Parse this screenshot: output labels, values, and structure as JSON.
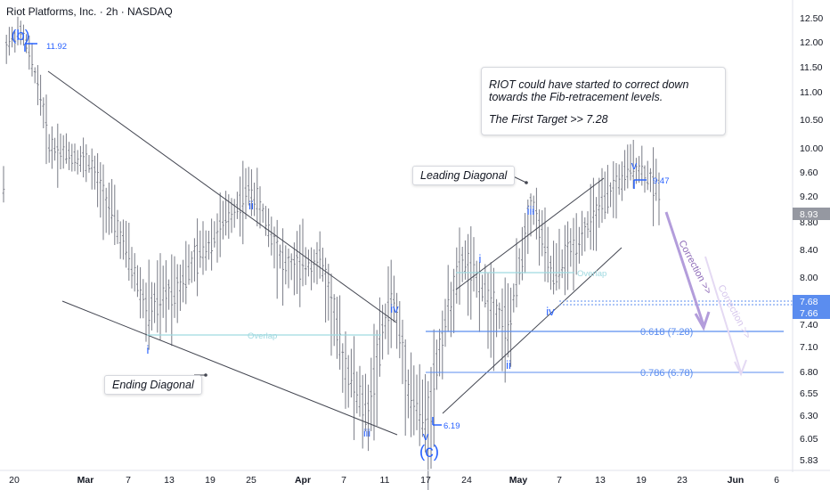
{
  "header": {
    "title": "Riot Platforms, Inc. · 2h · NASDAQ"
  },
  "note": {
    "line1": "RIOT could have started to correct down towards the Fib-retracement levels.",
    "line2": "The First Target >> 7.28"
  },
  "callouts": {
    "leading": "Leading Diagonal",
    "ending": "Ending Diagonal"
  },
  "colors": {
    "wave": "#2962ff",
    "fib": "#5b8def",
    "overlap": "#9fd9e0",
    "trendline": "#434651",
    "candle": "#787b86",
    "arrow": "#b39ddb",
    "price_badge": "#131722"
  },
  "chart_data": {
    "type": "bar",
    "ylim": [
      5.7,
      12.7
    ],
    "y_ticks": [
      "12.50",
      "12.00",
      "11.50",
      "11.00",
      "10.50",
      "10.00",
      "9.60",
      "9.20",
      "8.80",
      "8.40",
      "8.00",
      "7.40",
      "7.10",
      "6.80",
      "6.55",
      "6.30",
      "6.05",
      "5.83"
    ],
    "x_ticks": [
      "20",
      "Mar",
      "7",
      "13",
      "19",
      "25",
      "Apr",
      "7",
      "11",
      "17",
      "24",
      "May",
      "7",
      "13",
      "19",
      "23",
      "Jun",
      "6"
    ],
    "price_badges": [
      "8.93",
      "7.68",
      "7.66"
    ],
    "ohlc_summary": {
      "high_b": 11.92,
      "low_c": 6.19,
      "high_v": 9.47,
      "last": 8.93
    },
    "waves": [
      {
        "label": "(b)",
        "date": "Feb 20",
        "price": 12.12
      },
      {
        "label": "i",
        "date": "Mar 10",
        "price": 7.12
      },
      {
        "label": "ii",
        "date": "Mar 25",
        "price": 9.06
      },
      {
        "label": "iii",
        "date": "Apr 9",
        "price": 6.12
      },
      {
        "label": "iv",
        "date": "Apr 12",
        "price": 7.55
      },
      {
        "label": "v",
        "date": "Apr 17",
        "price": 6.02
      },
      {
        "label": "(c)",
        "date": "Apr 17",
        "price": 5.87
      },
      {
        "label": "i",
        "date": "Apr 28",
        "price": 8.22
      },
      {
        "label": "ii",
        "date": "May 1",
        "price": 6.93
      },
      {
        "label": "iii",
        "date": "May 6",
        "price": 9.02
      },
      {
        "label": "iv",
        "date": "May 8",
        "price": 7.58
      },
      {
        "label": "v",
        "date": "May 17",
        "price": 9.75
      }
    ],
    "price_labels": [
      "11.92",
      "6.19",
      "9.47"
    ],
    "fib_levels": [
      {
        "label": "0.618 (7.28)",
        "value": 7.28
      },
      {
        "label": "0.786 (6.78)",
        "value": 6.78
      }
    ],
    "overlap_labels": [
      "Overlap",
      "Overlap"
    ],
    "projection_labels": [
      "Correction >>",
      "Correction >>"
    ]
  }
}
